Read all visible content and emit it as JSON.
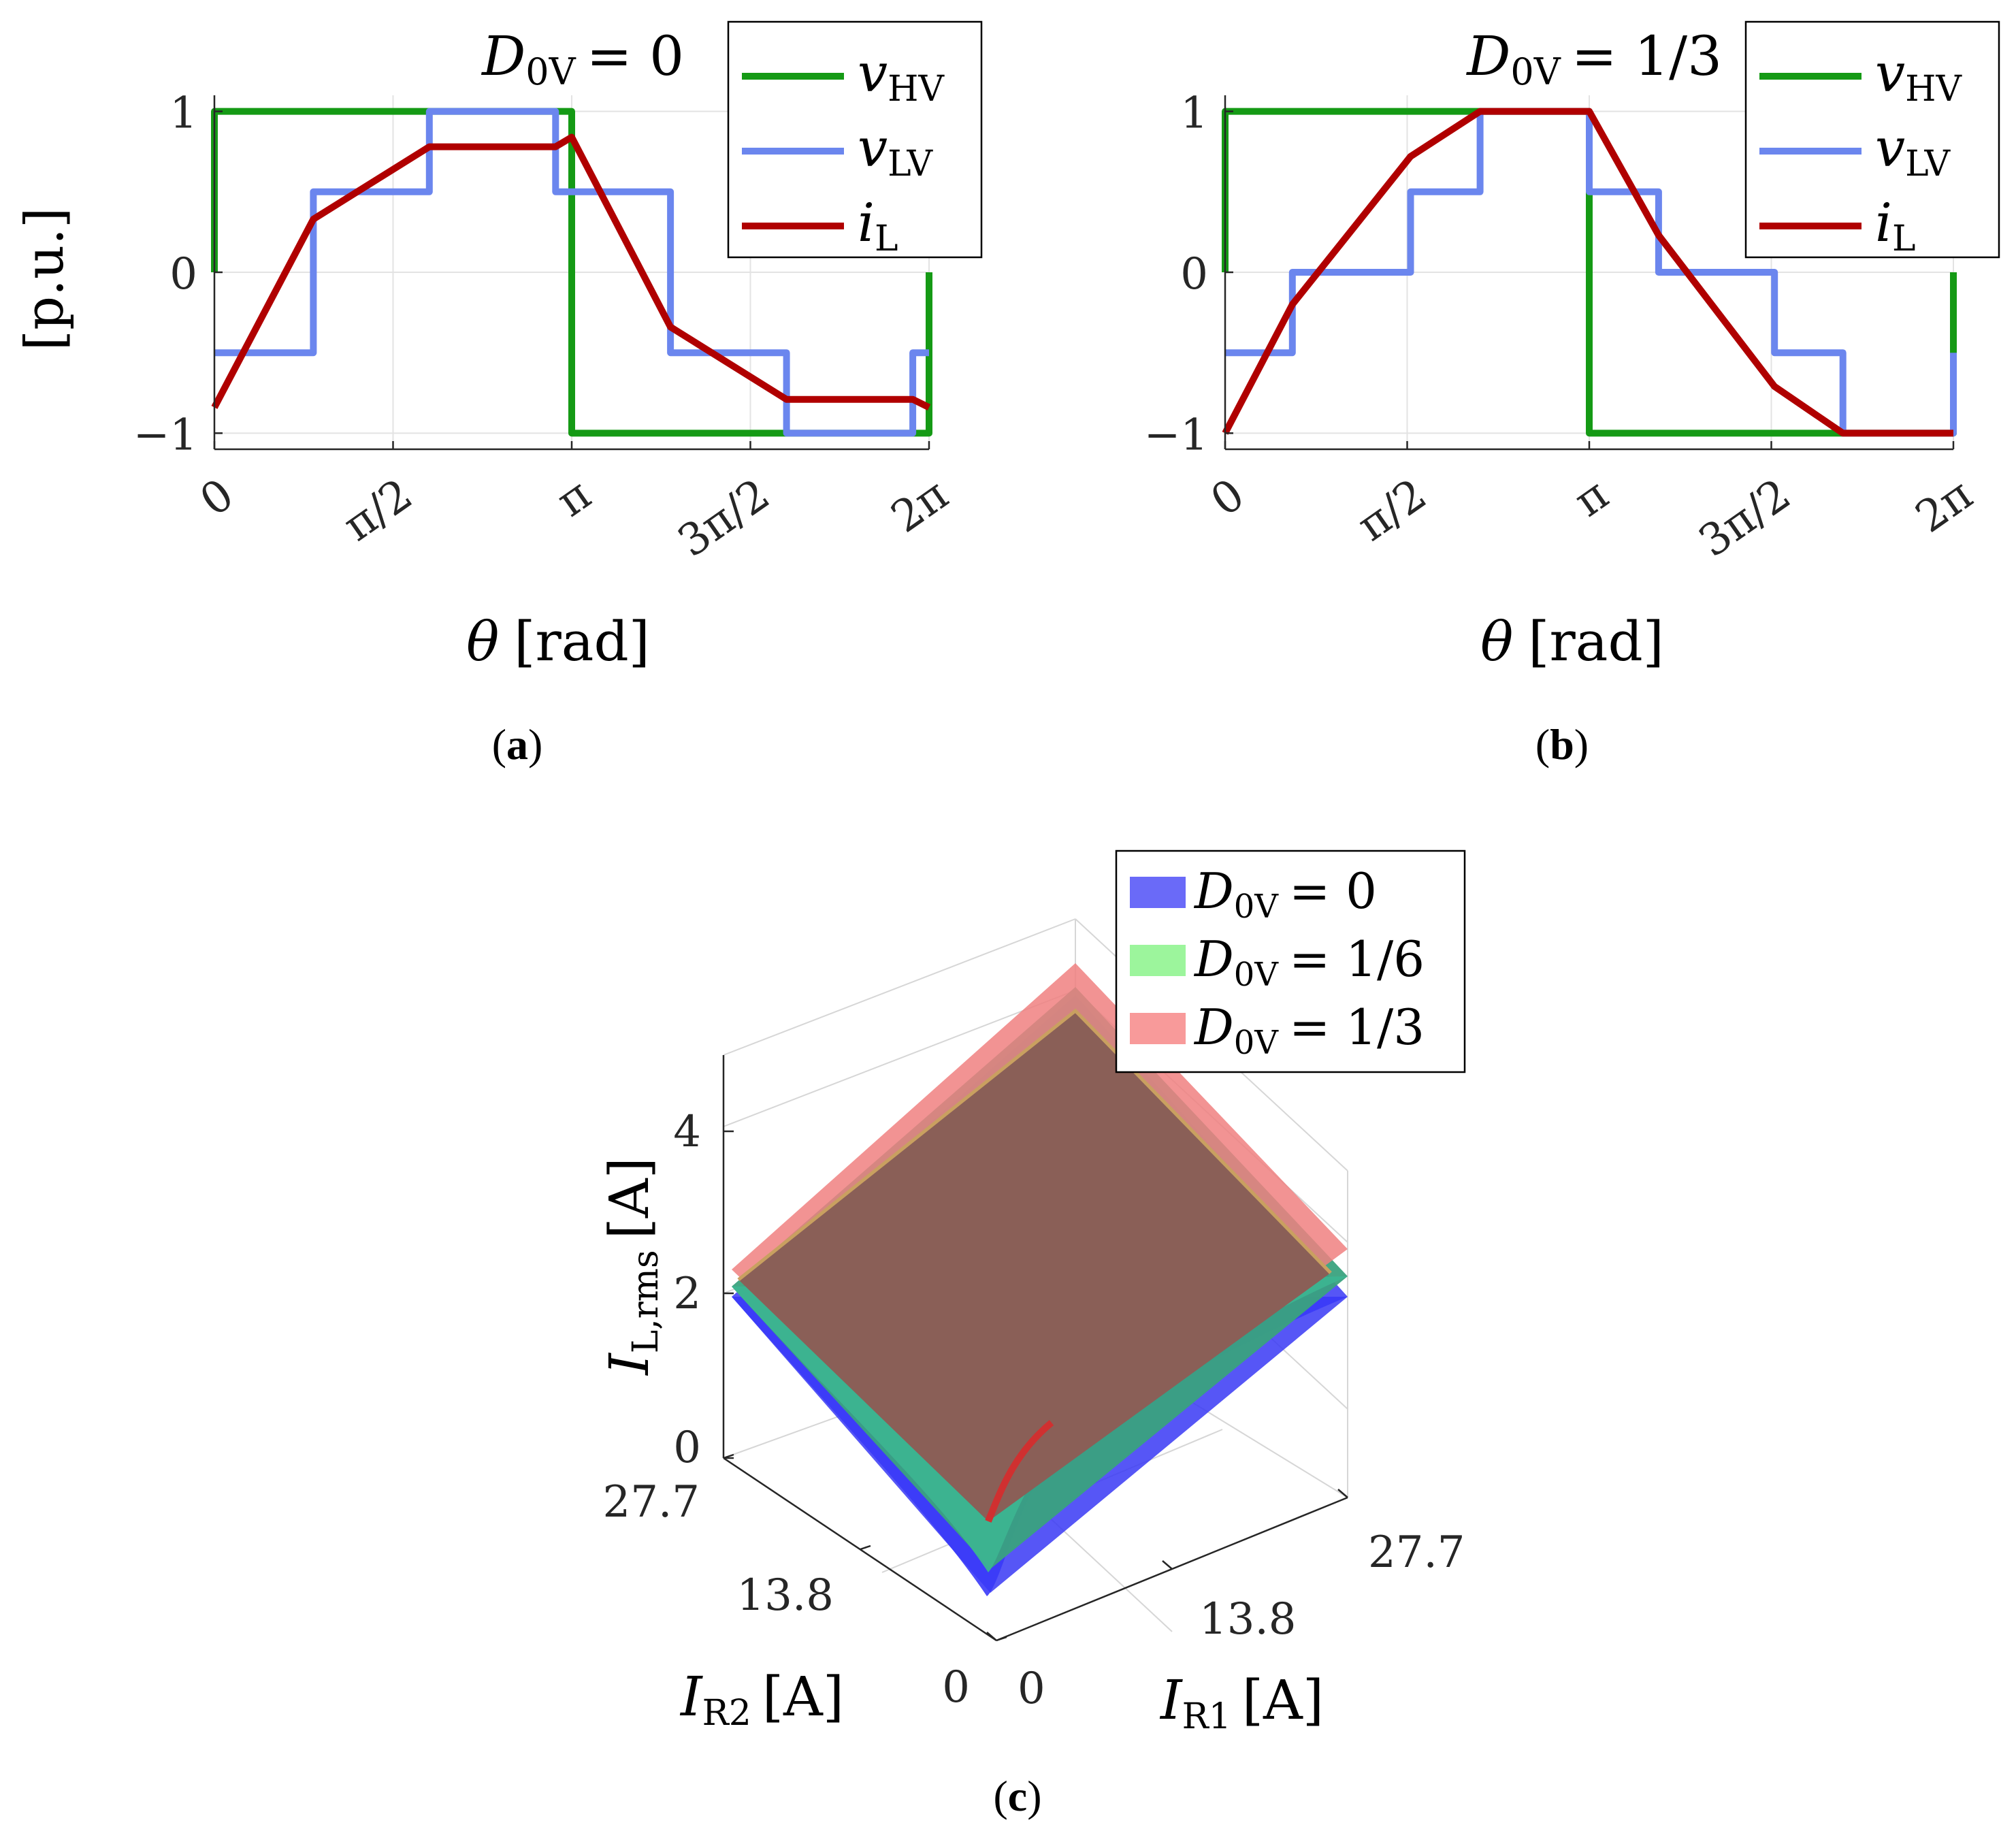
{
  "chart_data": [
    {
      "id": "a",
      "type": "line",
      "caption_letter": "a",
      "title": "D0V = 0",
      "title_sym": "D",
      "title_sub": "0V",
      "title_rhs": "= 0",
      "ylabel": "[p.u.]",
      "xlabel_sym": "θ",
      "xlabel_unit": "[rad]",
      "xlim": [
        0,
        6.2832
      ],
      "ylim": [
        -1.1,
        1.1
      ],
      "xticks": [
        {
          "v": 0,
          "label": "0"
        },
        {
          "v": 1.5708,
          "label": "π/2"
        },
        {
          "v": 3.1416,
          "label": "π"
        },
        {
          "v": 4.7124,
          "label": "3π/2"
        },
        {
          "v": 6.2832,
          "label": "2π"
        }
      ],
      "yticks": [
        {
          "v": 1,
          "label": "1"
        },
        {
          "v": 0,
          "label": "0"
        },
        {
          "v": -1,
          "label": "−1"
        }
      ],
      "legend": [
        {
          "sym": "v",
          "sub": "HV",
          "color": "#159a15"
        },
        {
          "sym": "v",
          "sub": "LV",
          "color": "#6b86ee"
        },
        {
          "sym": "i",
          "sub": "L",
          "color": "#b00000"
        }
      ],
      "series": [
        {
          "name": "vHV",
          "color": "#159a15",
          "x": [
            0,
            0,
            3.1416,
            3.1416,
            6.2832,
            6.2832
          ],
          "y": [
            0,
            1,
            1,
            -1,
            -1,
            0
          ]
        },
        {
          "name": "vLV",
          "color": "#6b86ee",
          "x": [
            0,
            0.87,
            0.87,
            1.89,
            1.89,
            3.0,
            3.0,
            4.01,
            4.01,
            5.03,
            5.03,
            6.14,
            6.14,
            6.2832
          ],
          "y": [
            -0.5,
            -0.5,
            0.5,
            0.5,
            1,
            1,
            0.5,
            0.5,
            -0.5,
            -0.5,
            -1,
            -1,
            -0.5,
            -0.5
          ]
        },
        {
          "name": "iL",
          "color": "#b00000",
          "x": [
            0,
            0.87,
            1.89,
            3.0,
            3.1416,
            4.01,
            5.03,
            6.14,
            6.2832
          ],
          "y": [
            -0.84,
            0.33,
            0.78,
            0.78,
            0.84,
            -0.34,
            -0.79,
            -0.79,
            -0.84
          ]
        }
      ]
    },
    {
      "id": "b",
      "type": "line",
      "caption_letter": "b",
      "title": "D0V = 1/3",
      "title_sym": "D",
      "title_sub": "0V",
      "title_rhs": "= 1/3",
      "ylabel": "",
      "xlabel_sym": "θ",
      "xlabel_unit": "[rad]",
      "xlim": [
        0,
        6.2832
      ],
      "ylim": [
        -1.1,
        1.1
      ],
      "xticks": [
        {
          "v": 0,
          "label": "0"
        },
        {
          "v": 1.5708,
          "label": "π/2"
        },
        {
          "v": 3.1416,
          "label": "π"
        },
        {
          "v": 4.7124,
          "label": "3π/2"
        },
        {
          "v": 6.2832,
          "label": "2π"
        }
      ],
      "yticks": [
        {
          "v": 1,
          "label": "1"
        },
        {
          "v": 0,
          "label": "0"
        },
        {
          "v": -1,
          "label": "−1"
        }
      ],
      "legend": [
        {
          "sym": "v",
          "sub": "HV",
          "color": "#159a15"
        },
        {
          "sym": "v",
          "sub": "LV",
          "color": "#6b86ee"
        },
        {
          "sym": "i",
          "sub": "L",
          "color": "#b00000"
        }
      ],
      "series": [
        {
          "name": "vHV",
          "color": "#159a15",
          "x": [
            0,
            0,
            3.1416,
            3.1416,
            6.2832,
            6.2832
          ],
          "y": [
            0,
            1,
            1,
            -1,
            -1,
            0
          ]
        },
        {
          "name": "vLV",
          "color": "#6b86ee",
          "x": [
            0,
            0.58,
            0.58,
            1.6,
            1.6,
            2.2,
            2.2,
            3.1416,
            3.1416,
            3.74,
            3.74,
            4.74,
            4.74,
            5.33,
            5.33,
            6.2832,
            6.2832
          ],
          "y": [
            -0.5,
            -0.5,
            0,
            0,
            0.5,
            0.5,
            1,
            1,
            0.5,
            0.5,
            0,
            0,
            -0.5,
            -0.5,
            -1,
            -1,
            -0.5
          ]
        },
        {
          "name": "iL",
          "color": "#b00000",
          "x": [
            0,
            0.58,
            1.6,
            2.2,
            3.1416,
            3.74,
            4.74,
            5.33,
            6.2832
          ],
          "y": [
            -1,
            -0.2,
            0.72,
            1,
            1,
            0.23,
            -0.71,
            -1,
            -1
          ]
        }
      ]
    },
    {
      "id": "c",
      "type": "surface3d",
      "caption_letter": "c",
      "zlabel_sym": "I",
      "zlabel_sub": "L,rms",
      "zlabel_unit": "[A]",
      "xlabel_sym": "I",
      "xlabel_sub": "R1",
      "xlabel_unit": "[A]",
      "ylabel_sym": "I",
      "ylabel_sub": "R2",
      "ylabel_unit": "[A]",
      "zticks": [
        "0",
        "2",
        "4"
      ],
      "xticks": [
        "0",
        "13.8",
        "27.7"
      ],
      "yticks": [
        "0",
        "13.8",
        "27.7"
      ],
      "zlim": [
        0,
        5
      ],
      "xlim": [
        0,
        27.7
      ],
      "ylim": [
        0,
        27.7
      ],
      "legend": [
        {
          "sym": "D",
          "sub": "0V",
          "rhs": "= 0",
          "color": "#6a6af8"
        },
        {
          "sym": "D",
          "sub": "0V",
          "rhs": "= 1/6",
          "color": "#9cf59c"
        },
        {
          "sym": "D",
          "sub": "0V",
          "rhs": "= 1/3",
          "color": "#f89a9a"
        }
      ],
      "surfaces": [
        {
          "name": "D0V = 0",
          "color": "#3a3af5",
          "corner_I_L_rms": [
            0.45,
            1.85,
            1.85,
            3.6
          ]
        },
        {
          "name": "D0V = 1/6",
          "color": "#46d646",
          "corner_I_L_rms": [
            0.6,
            1.9,
            1.9,
            3.75
          ]
        },
        {
          "name": "D0V = 1/3",
          "color": "#f05050",
          "corner_I_L_rms": [
            0.85,
            2.25,
            2.25,
            4.1
          ]
        }
      ]
    }
  ]
}
